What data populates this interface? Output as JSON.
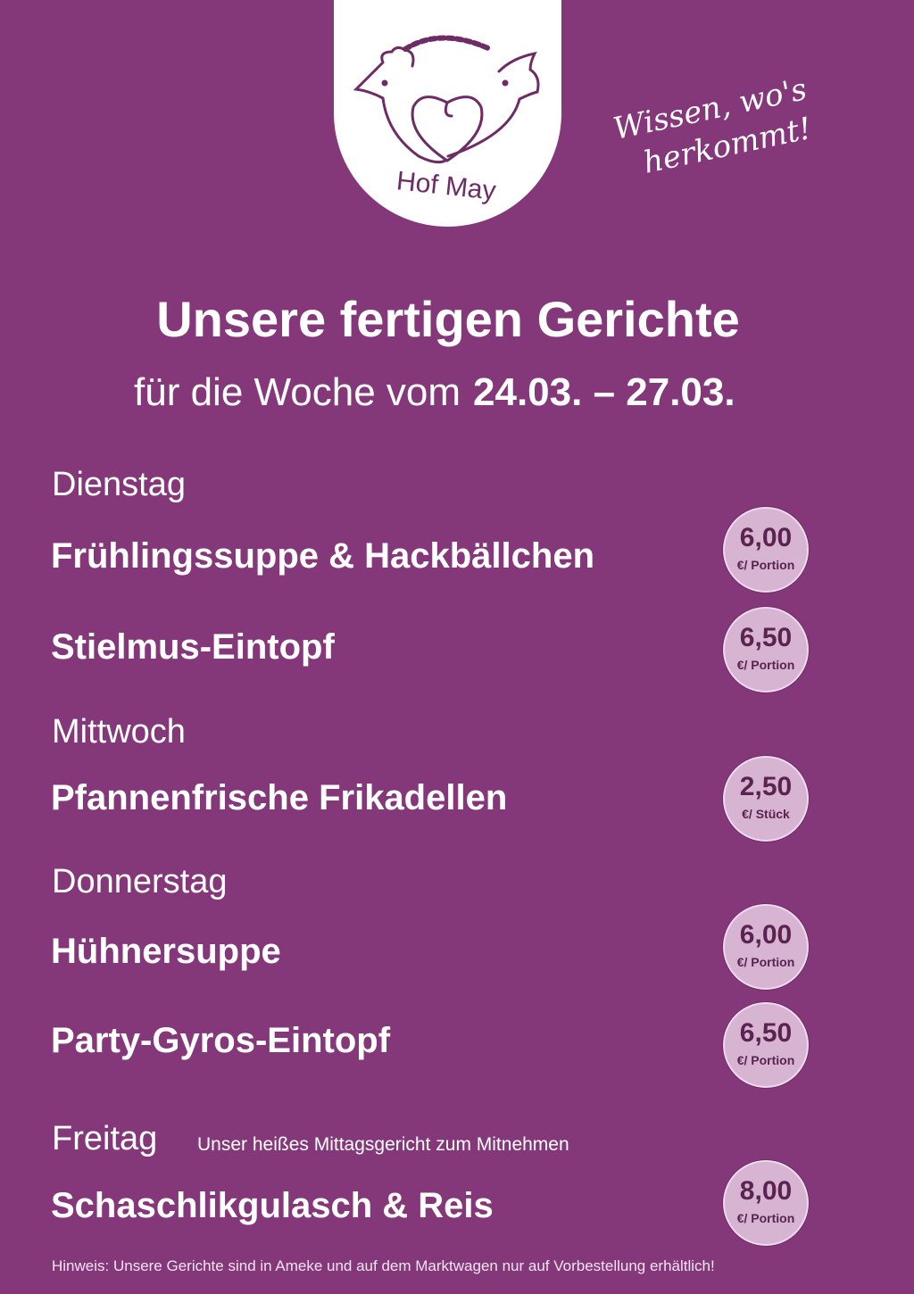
{
  "logo": {
    "brand": "Hof May"
  },
  "slogan": [
    "Wissen, wo's",
    "herkommt!"
  ],
  "header": {
    "title": "Unsere fertigen Gerichte",
    "subtitle": "für die Woche vom",
    "dates": "24.03. – 27.03."
  },
  "days": [
    {
      "label": "Dienstag"
    },
    {
      "label": "Mittwoch"
    },
    {
      "label": "Donnerstag"
    },
    {
      "label": "Freitag",
      "note": "Unser heißes Mittagsgericht zum Mitnehmen"
    }
  ],
  "dishes": [
    {
      "name": "Frühlingssuppe & Hackbällchen",
      "price": "6,00",
      "unit": "€/ Portion"
    },
    {
      "name": "Stielmus-Eintopf",
      "price": "6,50",
      "unit": "€/ Portion"
    },
    {
      "name": "Pfannenfrische Frikadellen",
      "price": "2,50",
      "unit": "€/ Stück"
    },
    {
      "name": "Hühnersuppe",
      "price": "6,00",
      "unit": "€/ Portion"
    },
    {
      "name": "Party-Gyros-Eintopf",
      "price": "6,50",
      "unit": "€/ Portion"
    },
    {
      "name": "Schaschlikgulasch & Reis",
      "price": "8,00",
      "unit": "€/ Portion"
    }
  ],
  "footer": "Hinweis: Unsere Gerichte sind in Ameke und auf dem Marktwagen nur auf Vorbestellung erhältlich!",
  "colors": {
    "background": "#84387a",
    "badge": "#d6b4d2",
    "badge_text": "#5a2350"
  }
}
